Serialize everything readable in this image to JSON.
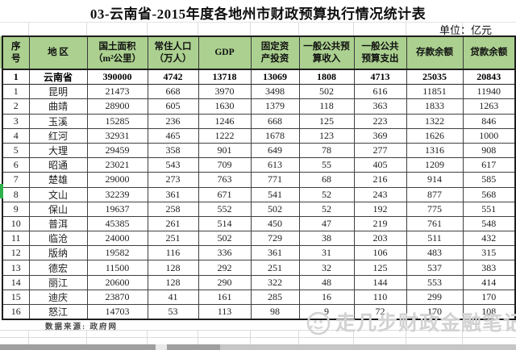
{
  "title": "03-云南省-2015年度各地州市财政预算执行情况统计表",
  "unit_label": "单位：亿元",
  "table": {
    "headers": [
      [
        "序",
        "号"
      ],
      [
        "地 区"
      ],
      [
        "国土面积",
        "（m²公里）"
      ],
      [
        "常住人口",
        "（万人）"
      ],
      [
        "GDP"
      ],
      [
        "固定资",
        "产投资"
      ],
      [
        "一般公共预",
        "算收入"
      ],
      [
        "一般公共",
        "预算支出"
      ],
      [
        "存款余额"
      ],
      [
        "贷款余额"
      ]
    ],
    "province_row": [
      "1",
      "云南省",
      "390000",
      "4742",
      "13718",
      "13069",
      "1808",
      "4713",
      "25035",
      "20843"
    ],
    "rows": [
      [
        "1",
        "昆明",
        "21473",
        "668",
        "3970",
        "3498",
        "502",
        "616",
        "11851",
        "11940"
      ],
      [
        "2",
        "曲靖",
        "28900",
        "605",
        "1630",
        "1379",
        "118",
        "363",
        "1833",
        "1263"
      ],
      [
        "3",
        "玉溪",
        "15285",
        "236",
        "1246",
        "668",
        "125",
        "223",
        "1322",
        "846"
      ],
      [
        "4",
        "红河",
        "32931",
        "465",
        "1222",
        "1678",
        "123",
        "369",
        "1626",
        "1000"
      ],
      [
        "5",
        "大理",
        "29459",
        "358",
        "901",
        "649",
        "78",
        "277",
        "1316",
        "908"
      ],
      [
        "6",
        "昭通",
        "23021",
        "543",
        "709",
        "613",
        "55",
        "405",
        "1209",
        "617"
      ],
      [
        "7",
        "楚雄",
        "29000",
        "273",
        "763",
        "771",
        "68",
        "216",
        "914",
        "585"
      ],
      [
        "8",
        "文山",
        "32239",
        "361",
        "671",
        "541",
        "52",
        "243",
        "877",
        "568"
      ],
      [
        "9",
        "保山",
        "19637",
        "258",
        "552",
        "502",
        "52",
        "192",
        "775",
        "551"
      ],
      [
        "10",
        "普洱",
        "45385",
        "261",
        "514",
        "450",
        "47",
        "219",
        "761",
        "548"
      ],
      [
        "11",
        "临沧",
        "24000",
        "251",
        "502",
        "729",
        "38",
        "203",
        "511",
        "432"
      ],
      [
        "12",
        "版纳",
        "19582",
        "116",
        "336",
        "361",
        "31",
        "106",
        "483",
        "315"
      ],
      [
        "13",
        "德宏",
        "11500",
        "128",
        "292",
        "251",
        "32",
        "125",
        "537",
        "383"
      ],
      [
        "14",
        "丽江",
        "20600",
        "128",
        "290",
        "322",
        "48",
        "144",
        "553",
        "414"
      ],
      [
        "15",
        "迪庆",
        "23870",
        "41",
        "161",
        "285",
        "16",
        "110",
        "299",
        "170"
      ],
      [
        "16",
        "怒江",
        "14703",
        "53",
        "113",
        "98",
        "9",
        "72",
        "170",
        "108"
      ]
    ]
  },
  "footer": {
    "source_note": "数据来源: 政府网"
  },
  "watermark": {
    "text": "走几步财政金融笔记"
  },
  "colors": {
    "header_green": "#abd08f",
    "selection_green": "#2eb14c",
    "watermark_gray": "#d2d2d2"
  }
}
